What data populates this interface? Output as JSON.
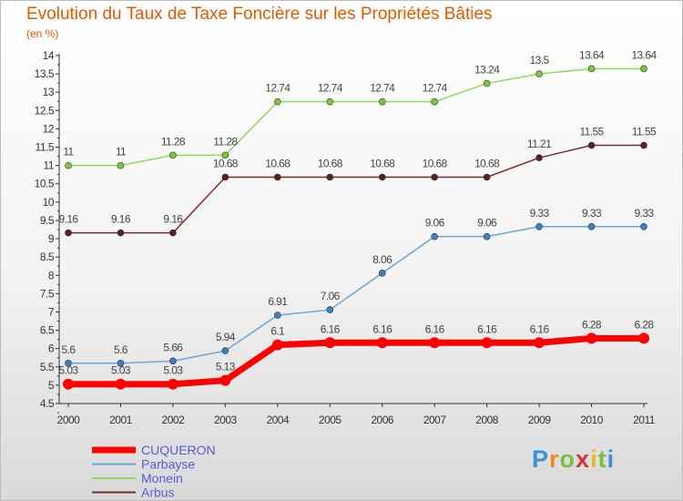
{
  "header": {
    "title": "Evolution du Taux de Taxe Foncière sur les Propriétés Bâties",
    "subtitle": "(en %)"
  },
  "logo": {
    "letters": [
      "P",
      "r",
      "o",
      "x",
      "i",
      "t",
      "i"
    ],
    "colors": [
      "#3a8fd6",
      "#f08a1c",
      "#7cbf3a",
      "#d9322e",
      "#f0b81c",
      "#7cbf3a",
      "#3a8fd6"
    ]
  },
  "chart_data": {
    "type": "line",
    "title": "Evolution du Taux de Taxe Foncière sur les Propriétés Bâties",
    "ylabel": "(en %)",
    "x": [
      "2000",
      "2001",
      "2002",
      "2003",
      "2004",
      "2005",
      "2006",
      "2007",
      "2008",
      "2009",
      "2010",
      "2011"
    ],
    "ylim": [
      4.5,
      14
    ],
    "yticks": [
      "4.5",
      "5",
      "5.5",
      "6",
      "6.5",
      "7",
      "7.5",
      "8",
      "8.5",
      "9",
      "9.5",
      "10",
      "10.5",
      "11",
      "11.5",
      "12",
      "12.5",
      "13",
      "13.5",
      "14"
    ],
    "grid": false,
    "legend": "bottom-left",
    "series": [
      {
        "name": "Monein",
        "color": "#90d860",
        "marker": "#78c83c",
        "width": 1.5,
        "values": [
          11,
          11,
          11.28,
          11.28,
          12.74,
          12.74,
          12.74,
          12.74,
          13.24,
          13.5,
          13.64,
          13.64
        ],
        "labels": [
          "11",
          "11",
          "11.28",
          "11.28",
          "12.74",
          "12.74",
          "12.74",
          "12.74",
          "13.24",
          "13.5",
          "13.64",
          "13.64"
        ]
      },
      {
        "name": "Arbus",
        "color": "#7a2c2c",
        "marker": "#5c1e1e",
        "width": 1.5,
        "values": [
          9.16,
          9.16,
          9.16,
          10.68,
          10.68,
          10.68,
          10.68,
          10.68,
          10.68,
          11.21,
          11.55,
          11.55
        ],
        "labels": [
          "9.16",
          "9.16",
          "9.16",
          "10.68",
          "10.68",
          "10.68",
          "10.68",
          "10.68",
          "10.68",
          "11.21",
          "11.55",
          "11.55"
        ]
      },
      {
        "name": "Parbayse",
        "color": "#6aa6d8",
        "marker": "#3b82c4",
        "width": 1.5,
        "values": [
          5.6,
          5.6,
          5.66,
          5.94,
          6.91,
          7.06,
          8.06,
          9.06,
          9.06,
          9.33,
          9.33,
          9.33
        ],
        "labels": [
          "5.6",
          "5.6",
          "5.66",
          "5.94",
          "6.91",
          "7.06",
          "8.06",
          "9.06",
          "9.06",
          "9.33",
          "9.33",
          "9.33"
        ]
      },
      {
        "name": "CUQUERON",
        "color": "#ff0000",
        "marker": "#ff0000",
        "width": 7,
        "values": [
          5.03,
          5.03,
          5.03,
          5.13,
          6.1,
          6.16,
          6.16,
          6.16,
          6.16,
          6.16,
          6.28,
          6.28
        ],
        "labels": [
          "5.03",
          "5.03",
          "5.03",
          "5.13",
          "6.1",
          "6.16",
          "6.16",
          "6.16",
          "6.16",
          "6.16",
          "6.28",
          "6.28"
        ]
      }
    ],
    "legend_order": [
      "CUQUERON",
      "Parbayse",
      "Monein",
      "Arbus"
    ]
  }
}
